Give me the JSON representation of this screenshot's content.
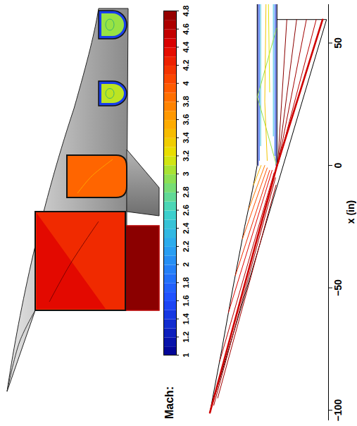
{
  "chart_data": {
    "type": "contour",
    "colorbar": {
      "label": "Mach:",
      "range": [
        1,
        4.8
      ],
      "ticks": [
        1,
        1.2,
        1.4,
        1.6,
        1.8,
        2,
        2.2,
        2.4,
        2.6,
        2.8,
        3,
        3.2,
        3.4,
        3.6,
        3.8,
        4,
        4.2,
        4.4,
        4.6,
        4.8
      ]
    },
    "x_label": "x (in)",
    "xlim": [
      -104,
      66
    ],
    "xticks": [
      -100,
      -50,
      0,
      50
    ],
    "ylim": [
      -21,
      29
    ],
    "tick_labels": "x",
    "geometry": [
      {
        "x": [
          -101,
          -75,
          -50,
          -25,
          -10,
          0,
          66
        ],
        "y": [
          27.4,
          22.5,
          18.0,
          13.2,
          10.0,
          8.1,
          8.1
        ]
      },
      {
        "x": [
          66,
          0
        ],
        "y": [
          0,
          0
        ]
      },
      {
        "x": [
          -101,
          59.6,
          59.6
        ],
        "y": [
          27.4,
          -20.2,
          0
        ]
      }
    ],
    "shocks": [
      {
        "mach": 4.5,
        "x": [
          -101,
          0
        ],
        "y": [
          27.4,
          0
        ]
      },
      {
        "mach": 4.5,
        "x": [
          0,
          59.6
        ],
        "y": [
          0,
          -18.6
        ]
      }
    ],
    "contours": [
      {
        "mach": 4.6,
        "x": [
          -80,
          -3
        ],
        "y": [
          23.4,
          1.2
        ]
      },
      {
        "mach": 4.4,
        "x": [
          -60,
          -2
        ],
        "y": [
          19.8,
          2
        ]
      },
      {
        "mach": 4.2,
        "x": [
          -45,
          -2
        ],
        "y": [
          17.0,
          3
        ]
      },
      {
        "mach": 4.0,
        "x": [
          -30,
          -1
        ],
        "y": [
          14.1,
          4
        ]
      },
      {
        "mach": 3.8,
        "x": [
          -18,
          0
        ],
        "y": [
          11.6,
          5
        ]
      },
      {
        "mach": 3.5,
        "x": [
          -8,
          0
        ],
        "y": [
          9.6,
          6.5
        ]
      },
      {
        "mach": 4.7,
        "x": [
          -98,
          -5
        ],
        "y": [
          25.8,
          0.6
        ]
      },
      {
        "mach": 4.7,
        "x": [
          -95,
          -8
        ],
        "y": [
          24.2,
          0.4
        ]
      },
      {
        "mach": 4.8,
        "x": [
          1,
          59.6
        ],
        "y": [
          -0.3,
          -4
        ]
      },
      {
        "mach": 4.8,
        "x": [
          1,
          59.6
        ],
        "y": [
          -0.4,
          -8
        ]
      },
      {
        "mach": 4.7,
        "x": [
          1,
          59.6
        ],
        "y": [
          -0.5,
          -12
        ]
      },
      {
        "mach": 4.6,
        "x": [
          1,
          59.6
        ],
        "y": [
          -0.6,
          -16
        ]
      },
      {
        "mach": 1.2,
        "x": [
          0,
          66
        ],
        "y": [
          0.4,
          0.4
        ]
      },
      {
        "mach": 1.2,
        "x": [
          0,
          66
        ],
        "y": [
          7.7,
          7.7
        ]
      },
      {
        "mach": 1.8,
        "x": [
          4,
          66
        ],
        "y": [
          0.9,
          0.9
        ]
      },
      {
        "mach": 1.8,
        "x": [
          2,
          66
        ],
        "y": [
          7.2,
          7.2
        ]
      },
      {
        "mach": 2.4,
        "x": [
          12,
          66
        ],
        "y": [
          1.5,
          1.5
        ]
      },
      {
        "mach": 2.4,
        "x": [
          8,
          66
        ],
        "y": [
          6.7,
          6.7
        ]
      },
      {
        "mach": 3.0,
        "x": [
          0,
          28
        ],
        "y": [
          0.2,
          8.0
        ]
      },
      {
        "mach": 3.0,
        "x": [
          28,
          56
        ],
        "y": [
          8.0,
          0.2
        ]
      },
      {
        "mach": 3.4,
        "x": [
          2,
          26,
          66
        ],
        "y": [
          4,
          5,
          4.5
        ]
      },
      {
        "mach": 3.2,
        "x": [
          30,
          66
        ],
        "y": [
          3,
          3.5
        ]
      }
    ],
    "sections": [
      {
        "core": 4.8,
        "rim": 4.6
      },
      {
        "core": 4.2,
        "rim": 4.4
      },
      {
        "core": 3.9,
        "rim": 3.6
      },
      {
        "core": 3.1,
        "rim": 1.5
      },
      {
        "core": 3.0,
        "rim": 1.5
      }
    ]
  }
}
